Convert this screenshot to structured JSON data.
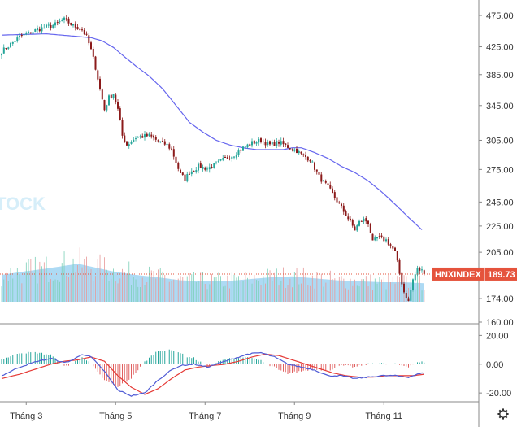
{
  "watermark": {
    "text": "TOCK"
  },
  "icons": {
    "settings": "gear-icon"
  },
  "colors": {
    "up": "#26a69a",
    "down": "#8b1a1a",
    "ma_line": "#6666ee",
    "volume_area": "#9fd4f2",
    "macd_line": "#4f5bd5",
    "signal_line": "#e53935",
    "hist_pos": "#26a69a",
    "hist_neg": "#e06060",
    "badge_bg": "#e5533c",
    "axis_text": "#333333",
    "grid_separator": "#cccccc"
  },
  "chart_data": [
    {
      "type": "candlestick",
      "panel": "price",
      "series_label": "HNXINDEX",
      "last_value": "189.73",
      "y_scale": "log",
      "ylim": [
        160,
        496
      ],
      "y_ticks": [
        "475.00",
        "425.00",
        "385.00",
        "345.00",
        "305.00",
        "275.00",
        "245.00",
        "225.00",
        "205.00",
        "174.00",
        "160.00"
      ],
      "x_tick_labels": [
        "Tháng 3",
        "Tháng 5",
        "Tháng 7",
        "Tháng 9",
        "Tháng 11"
      ],
      "x_tick_positions": [
        11,
        51,
        91,
        131,
        171
      ],
      "n_sessions": 190,
      "close_anchors": [
        [
          0,
          418
        ],
        [
          8,
          440
        ],
        [
          16,
          452
        ],
        [
          24,
          460
        ],
        [
          28,
          468
        ],
        [
          32,
          458
        ],
        [
          36,
          452
        ],
        [
          38,
          440
        ],
        [
          40,
          420
        ],
        [
          42,
          395
        ],
        [
          44,
          365
        ],
        [
          46,
          340
        ],
        [
          48,
          355
        ],
        [
          50,
          360
        ],
        [
          52,
          340
        ],
        [
          54,
          310
        ],
        [
          56,
          300
        ],
        [
          60,
          308
        ],
        [
          66,
          310
        ],
        [
          70,
          304
        ],
        [
          74,
          300
        ],
        [
          76,
          295
        ],
        [
          78,
          282
        ],
        [
          80,
          270
        ],
        [
          82,
          266
        ],
        [
          84,
          272
        ],
        [
          88,
          278
        ],
        [
          92,
          276
        ],
        [
          96,
          280
        ],
        [
          100,
          286
        ],
        [
          104,
          290
        ],
        [
          108,
          297
        ],
        [
          112,
          302
        ],
        [
          116,
          305
        ],
        [
          120,
          300
        ],
        [
          124,
          303
        ],
        [
          128,
          298
        ],
        [
          132,
          294
        ],
        [
          134,
          290
        ],
        [
          138,
          285
        ],
        [
          142,
          268
        ],
        [
          146,
          258
        ],
        [
          150,
          246
        ],
        [
          154,
          234
        ],
        [
          158,
          222
        ],
        [
          160,
          228
        ],
        [
          162,
          230
        ],
        [
          164,
          228
        ],
        [
          166,
          212
        ],
        [
          168,
          216
        ],
        [
          170,
          215
        ],
        [
          172,
          214
        ],
        [
          174,
          210
        ],
        [
          176,
          205
        ],
        [
          178,
          190
        ],
        [
          180,
          178
        ],
        [
          182,
          172
        ],
        [
          184,
          186
        ],
        [
          186,
          193
        ],
        [
          188,
          192
        ],
        [
          189,
          189.73
        ]
      ],
      "overlay_ma": {
        "anchors": [
          [
            0,
            443
          ],
          [
            10,
            444
          ],
          [
            20,
            445
          ],
          [
            30,
            442
          ],
          [
            40,
            439
          ],
          [
            45,
            434
          ],
          [
            50,
            424
          ],
          [
            55,
            410
          ],
          [
            60,
            397
          ],
          [
            66,
            383
          ],
          [
            72,
            366
          ],
          [
            78,
            345
          ],
          [
            84,
            325
          ],
          [
            90,
            314
          ],
          [
            96,
            305
          ],
          [
            102,
            300
          ],
          [
            108,
            297
          ],
          [
            114,
            295
          ],
          [
            120,
            295
          ],
          [
            126,
            295
          ],
          [
            130,
            297
          ],
          [
            134,
            297
          ],
          [
            140,
            292
          ],
          [
            146,
            286
          ],
          [
            152,
            278
          ],
          [
            158,
            272
          ],
          [
            164,
            264
          ],
          [
            170,
            254
          ],
          [
            176,
            243
          ],
          [
            182,
            232
          ],
          [
            188,
            222
          ]
        ]
      }
    },
    {
      "type": "area+bar",
      "panel": "volume",
      "note": "relative volume bars with moving-average area, no printed axis",
      "area_level_anchors": [
        [
          0,
          0.55
        ],
        [
          10,
          0.62
        ],
        [
          20,
          0.68
        ],
        [
          30,
          0.75
        ],
        [
          34,
          0.78
        ],
        [
          40,
          0.72
        ],
        [
          50,
          0.62
        ],
        [
          60,
          0.55
        ],
        [
          70,
          0.5
        ],
        [
          80,
          0.44
        ],
        [
          90,
          0.42
        ],
        [
          100,
          0.42
        ],
        [
          110,
          0.46
        ],
        [
          120,
          0.5
        ],
        [
          130,
          0.52
        ],
        [
          140,
          0.48
        ],
        [
          150,
          0.44
        ],
        [
          160,
          0.42
        ],
        [
          170,
          0.4
        ],
        [
          180,
          0.4
        ],
        [
          189,
          0.38
        ]
      ]
    },
    {
      "type": "macd",
      "panel": "macd",
      "ylim": [
        -25,
        27
      ],
      "y_ticks": [
        "20.00",
        "0.00",
        "-20.00"
      ],
      "macd_anchors": [
        [
          0,
          -8
        ],
        [
          8,
          -2
        ],
        [
          16,
          2
        ],
        [
          22,
          4
        ],
        [
          28,
          1
        ],
        [
          32,
          3
        ],
        [
          36,
          7
        ],
        [
          40,
          5
        ],
        [
          46,
          -5
        ],
        [
          52,
          -18
        ],
        [
          58,
          -22
        ],
        [
          64,
          -20
        ],
        [
          70,
          -11
        ],
        [
          76,
          -4
        ],
        [
          80,
          -1
        ],
        [
          86,
          0
        ],
        [
          92,
          -2
        ],
        [
          98,
          1
        ],
        [
          104,
          4
        ],
        [
          110,
          7
        ],
        [
          116,
          8
        ],
        [
          122,
          5
        ],
        [
          128,
          0
        ],
        [
          134,
          -2
        ],
        [
          140,
          -4
        ],
        [
          146,
          -8
        ],
        [
          152,
          -8
        ],
        [
          158,
          -10
        ],
        [
          164,
          -9
        ],
        [
          170,
          -8
        ],
        [
          176,
          -8
        ],
        [
          182,
          -9
        ],
        [
          186,
          -7
        ],
        [
          189,
          -6
        ]
      ],
      "signal_anchors": [
        [
          0,
          -10
        ],
        [
          8,
          -7
        ],
        [
          16,
          -3
        ],
        [
          22,
          0
        ],
        [
          28,
          2
        ],
        [
          34,
          3
        ],
        [
          40,
          5
        ],
        [
          46,
          2
        ],
        [
          52,
          -8
        ],
        [
          58,
          -16
        ],
        [
          64,
          -21
        ],
        [
          70,
          -17
        ],
        [
          76,
          -10
        ],
        [
          82,
          -4
        ],
        [
          88,
          -2
        ],
        [
          94,
          -1
        ],
        [
          100,
          0
        ],
        [
          106,
          2
        ],
        [
          112,
          5
        ],
        [
          118,
          7
        ],
        [
          124,
          6
        ],
        [
          130,
          3
        ],
        [
          136,
          0
        ],
        [
          142,
          -3
        ],
        [
          148,
          -6
        ],
        [
          154,
          -8
        ],
        [
          160,
          -9
        ],
        [
          166,
          -9
        ],
        [
          172,
          -8
        ],
        [
          178,
          -8
        ],
        [
          184,
          -8
        ],
        [
          189,
          -7
        ]
      ]
    }
  ]
}
